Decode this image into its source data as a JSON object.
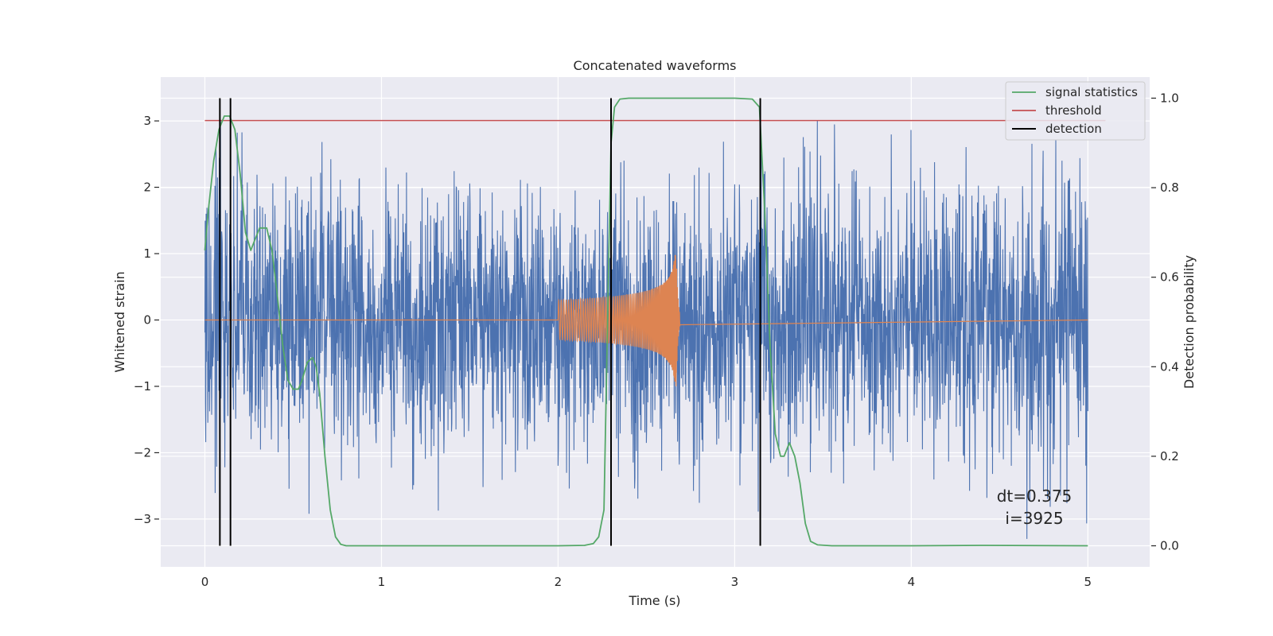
{
  "chart_data": {
    "type": "line",
    "title": "Concatenated waveforms",
    "xlabel": "Time (s)",
    "ylabel": "Whitened strain",
    "y2label": "Detection probability",
    "xlim": [
      -0.25,
      5.35
    ],
    "ylim": [
      -3.72,
      3.66
    ],
    "y2lim": [
      -0.047,
      1.047
    ],
    "x_ticks": [
      0,
      1,
      2,
      3,
      4,
      5
    ],
    "x_tick_labels": [
      "0",
      "1",
      "2",
      "3",
      "4",
      "5"
    ],
    "y_ticks": [
      -3,
      -2,
      -1,
      0,
      1,
      2,
      3
    ],
    "y_tick_labels": [
      "−3",
      "−2",
      "−1",
      "0",
      "1",
      "2",
      "3"
    ],
    "y2_ticks": [
      0.0,
      0.2,
      0.4,
      0.6,
      0.8,
      1.0
    ],
    "y2_tick_labels": [
      "0.0",
      "0.2",
      "0.4",
      "0.6",
      "0.8",
      "1.0"
    ],
    "grid": true,
    "legend_position": "top-right",
    "legend": [
      "signal statistics",
      "threshold",
      "detection"
    ],
    "annotation": [
      "dt=0.375",
      "i=3925"
    ],
    "colors": {
      "background": "#eaeaf2",
      "grid": "#ffffff",
      "strain": "#4c72b0",
      "waveform": "#dd8452",
      "signal_statistics": "#55a868",
      "threshold": "#c44e52",
      "detection": "#000000"
    },
    "series": [
      {
        "name": "",
        "axis": "left",
        "description_kind": "noise",
        "x_range": [
          0,
          5
        ],
        "amplitude_typical": 1.0,
        "peak_abs": 3.3
      },
      {
        "name": "",
        "axis": "left",
        "kind": "chirp",
        "x_start": 2.0,
        "x_merger": 2.67,
        "x_end": 5.0,
        "start_amplitude": 0.3,
        "peak_pos": 0.98,
        "peak_neg": -1.23
      },
      {
        "name": "signal statistics",
        "axis": "right",
        "x": [
          0.0,
          0.02,
          0.05,
          0.08,
          0.11,
          0.14,
          0.17,
          0.2,
          0.23,
          0.26,
          0.28,
          0.31,
          0.35,
          0.38,
          0.41,
          0.44,
          0.47,
          0.5,
          0.53,
          0.55,
          0.58,
          0.61,
          0.63,
          0.65,
          0.68,
          0.71,
          0.74,
          0.77,
          0.8,
          1.0,
          1.5,
          2.0,
          2.15,
          2.2,
          2.23,
          2.26,
          2.28,
          2.3,
          2.32,
          2.35,
          2.4,
          2.6,
          3.0,
          3.1,
          3.14,
          3.17,
          3.2,
          3.23,
          3.26,
          3.28,
          3.31,
          3.34,
          3.37,
          3.4,
          3.43,
          3.47,
          3.55,
          4.0,
          4.4,
          5.0
        ],
        "values": [
          0.66,
          0.75,
          0.86,
          0.93,
          0.96,
          0.96,
          0.93,
          0.83,
          0.7,
          0.66,
          0.68,
          0.71,
          0.71,
          0.66,
          0.56,
          0.45,
          0.37,
          0.35,
          0.35,
          0.37,
          0.41,
          0.42,
          0.4,
          0.34,
          0.2,
          0.08,
          0.02,
          0.003,
          0.0,
          0.0,
          0.0,
          0.0,
          0.001,
          0.005,
          0.02,
          0.08,
          0.5,
          0.9,
          0.98,
          0.998,
          1.0,
          1.0,
          1.0,
          0.998,
          0.98,
          0.75,
          0.45,
          0.25,
          0.2,
          0.2,
          0.23,
          0.2,
          0.14,
          0.05,
          0.01,
          0.002,
          0.0,
          0.0,
          0.001,
          0.0
        ]
      },
      {
        "name": "threshold",
        "axis": "right",
        "x": [
          0,
          5.1
        ],
        "values": [
          0.95,
          0.95
        ]
      }
    ],
    "detections_x": [
      0.085,
      0.145,
      2.3,
      3.145
    ]
  }
}
